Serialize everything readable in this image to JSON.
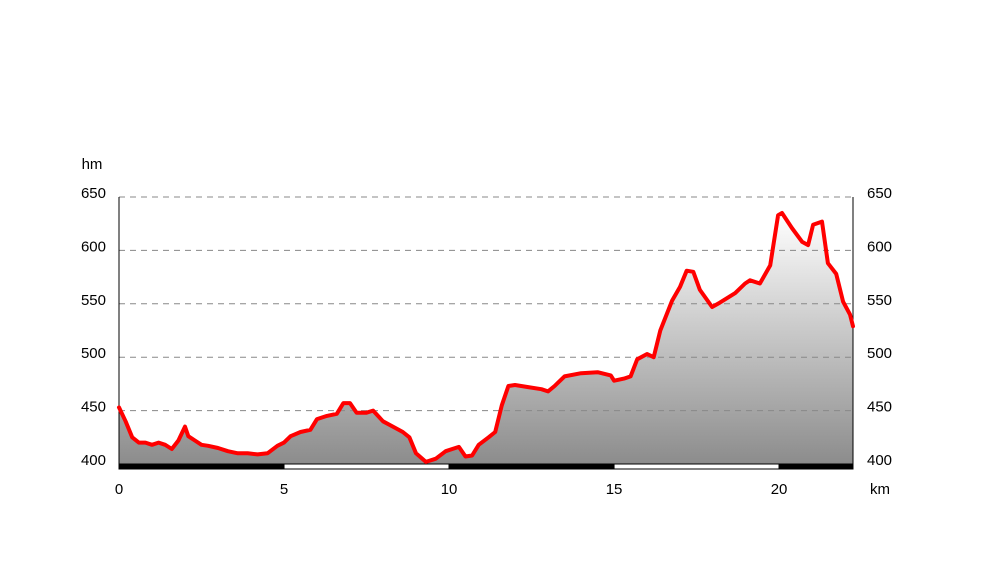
{
  "chart_data": {
    "type": "area",
    "x_label": "km",
    "y_label": "hm",
    "x": [
      0,
      0.2,
      0.4,
      0.6,
      0.8,
      1.0,
      1.2,
      1.4,
      1.6,
      1.8,
      2.0,
      2.1,
      2.3,
      2.5,
      2.7,
      3.0,
      3.3,
      3.6,
      3.9,
      4.2,
      4.5,
      4.8,
      5.0,
      5.2,
      5.5,
      5.8,
      6.0,
      6.3,
      6.6,
      6.8,
      7.0,
      7.2,
      7.5,
      7.7,
      8.0,
      8.3,
      8.6,
      8.8,
      9.0,
      9.3,
      9.6,
      9.9,
      10.1,
      10.3,
      10.5,
      10.7,
      10.9,
      11.2,
      11.4,
      11.6,
      11.8,
      12.0,
      12.4,
      12.8,
      13.0,
      13.2,
      13.5,
      14.0,
      14.5,
      14.9,
      15.0,
      15.3,
      15.5,
      15.7,
      16.0,
      16.2,
      16.4,
      16.76,
      17.0,
      17.2,
      17.4,
      17.6,
      17.97,
      18.2,
      18.67,
      18.97,
      19.12,
      19.42,
      19.73,
      19.97,
      20.09,
      20.39,
      20.7,
      20.88,
      21.03,
      21.3,
      21.48,
      21.73,
      21.94,
      22.15,
      22.24
    ],
    "series": [
      {
        "color": "#ff0000",
        "values": [
          453,
          440,
          425,
          420,
          420,
          418,
          420,
          418,
          414,
          422,
          435,
          426,
          422,
          418,
          417,
          415,
          412,
          410,
          410,
          409,
          410,
          417,
          420,
          426,
          430,
          432,
          442,
          445,
          447,
          457,
          457,
          448,
          448,
          450,
          440,
          435,
          430,
          425,
          410,
          402,
          405,
          412,
          414,
          416,
          407,
          408,
          418,
          425,
          430,
          455,
          473,
          474,
          472,
          470,
          468,
          473,
          482,
          485,
          486,
          483,
          478,
          480,
          482,
          498,
          503,
          500,
          525,
          553,
          566,
          581,
          580,
          563,
          547,
          551,
          560,
          569,
          572,
          569,
          586,
          633,
          635,
          621,
          608,
          605,
          624,
          627,
          588,
          578,
          552,
          540,
          529
        ]
      }
    ],
    "xlim": [
      0,
      22.24
    ],
    "xticks": [
      0,
      5,
      10,
      15,
      20
    ],
    "ylim": [
      400,
      650
    ],
    "yticks": [
      400,
      450,
      500,
      550,
      600,
      650
    ],
    "y2lim": [
      400,
      650
    ],
    "y2ticks": [
      400,
      450,
      500,
      550,
      600,
      650
    ],
    "grid": true
  }
}
